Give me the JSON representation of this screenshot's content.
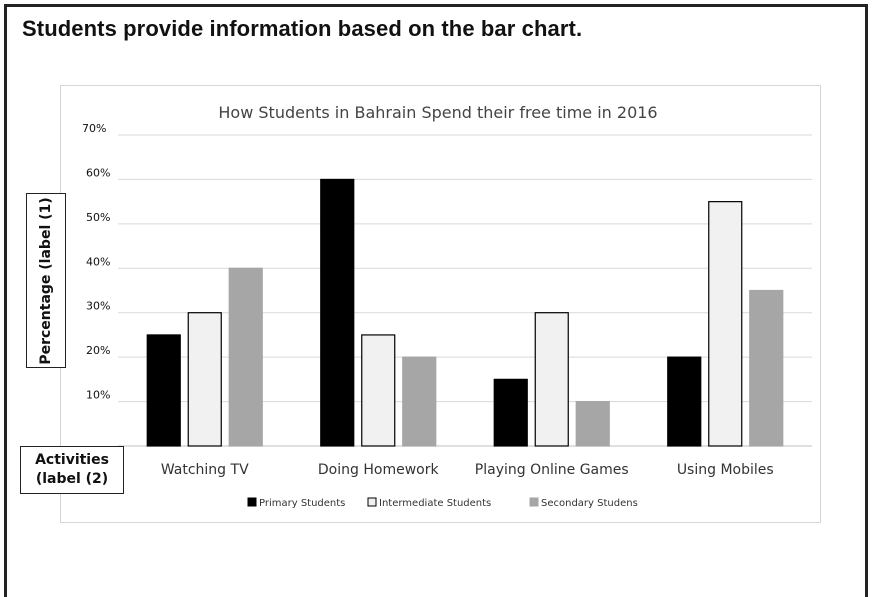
{
  "page": {
    "heading": "Students provide information based on the bar chart."
  },
  "annotations": {
    "y_axis_label": "Percentage (label (1)",
    "x_axis_label_line1": "Activities",
    "x_axis_label_line2": "(label (2)"
  },
  "chart_data": {
    "type": "bar",
    "title": "How Students in Bahrain Spend their free time in 2016",
    "categories": [
      "Watching TV",
      "Doing Homework",
      "Playing Online Games",
      "Using Mobiles"
    ],
    "y_ticks": [
      "70%",
      "60%",
      "50%",
      "40%",
      "30%",
      "20%",
      "10%"
    ],
    "ylim": [
      0,
      70
    ],
    "grid": true,
    "legend_position": "bottom",
    "series": [
      {
        "name": "Primary Students",
        "values": [
          25,
          60,
          15,
          20
        ],
        "color": "#000000"
      },
      {
        "name": "Intermediate Students",
        "values": [
          30,
          25,
          30,
          55
        ],
        "color": "#f1f1f1"
      },
      {
        "name": "Secondary Studens",
        "values": [
          40,
          20,
          10,
          35
        ],
        "color": "#a6a6a6"
      }
    ]
  }
}
